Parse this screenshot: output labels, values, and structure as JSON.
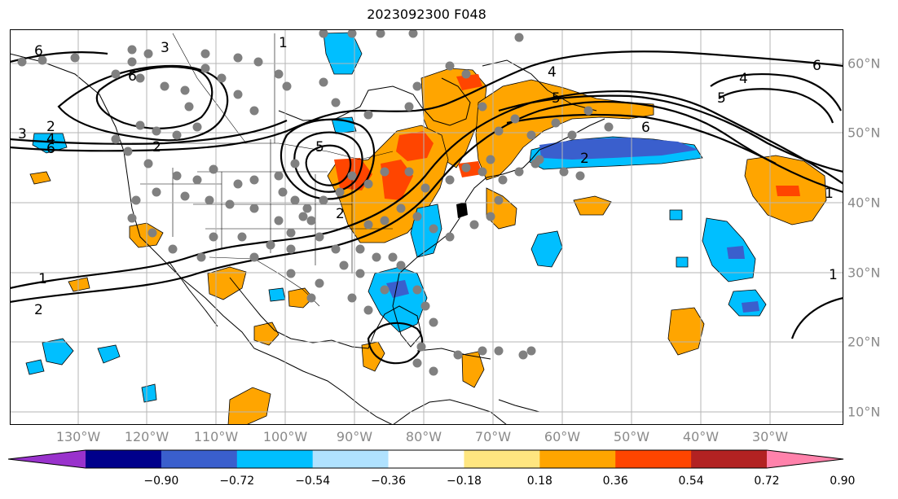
{
  "title": "2023092300 F048",
  "longitude_labels": [
    "130°W",
    "120°W",
    "110°W",
    "100°W",
    "90°W",
    "80°W",
    "70°W",
    "60°W",
    "50°W",
    "40°W",
    "30°W"
  ],
  "latitude_labels": [
    "60°N",
    "50°N",
    "40°N",
    "30°N",
    "20°N",
    "10°N"
  ],
  "colorbar": {
    "tick_labels": [
      "−0.90",
      "−0.72",
      "−0.54",
      "−0.36",
      "−0.18",
      "0.18",
      "0.36",
      "0.54",
      "0.72",
      "0.90"
    ],
    "colors": [
      "#9932cc",
      "#00008b",
      "#3a5fcd",
      "#00bfff",
      "#b0e2ff",
      "#ffffff",
      "#ffe680",
      "#ffa500",
      "#ff4500",
      "#b22222",
      "#ff82ab"
    ],
    "extend": "both"
  },
  "contour_labels": [
    "1",
    "2",
    "3",
    "4",
    "5",
    "6"
  ],
  "colors": {
    "land_outline": "#000000",
    "graticule": "#b5b5b5",
    "station_marker": "#808080",
    "contour_line": "#000000"
  }
}
